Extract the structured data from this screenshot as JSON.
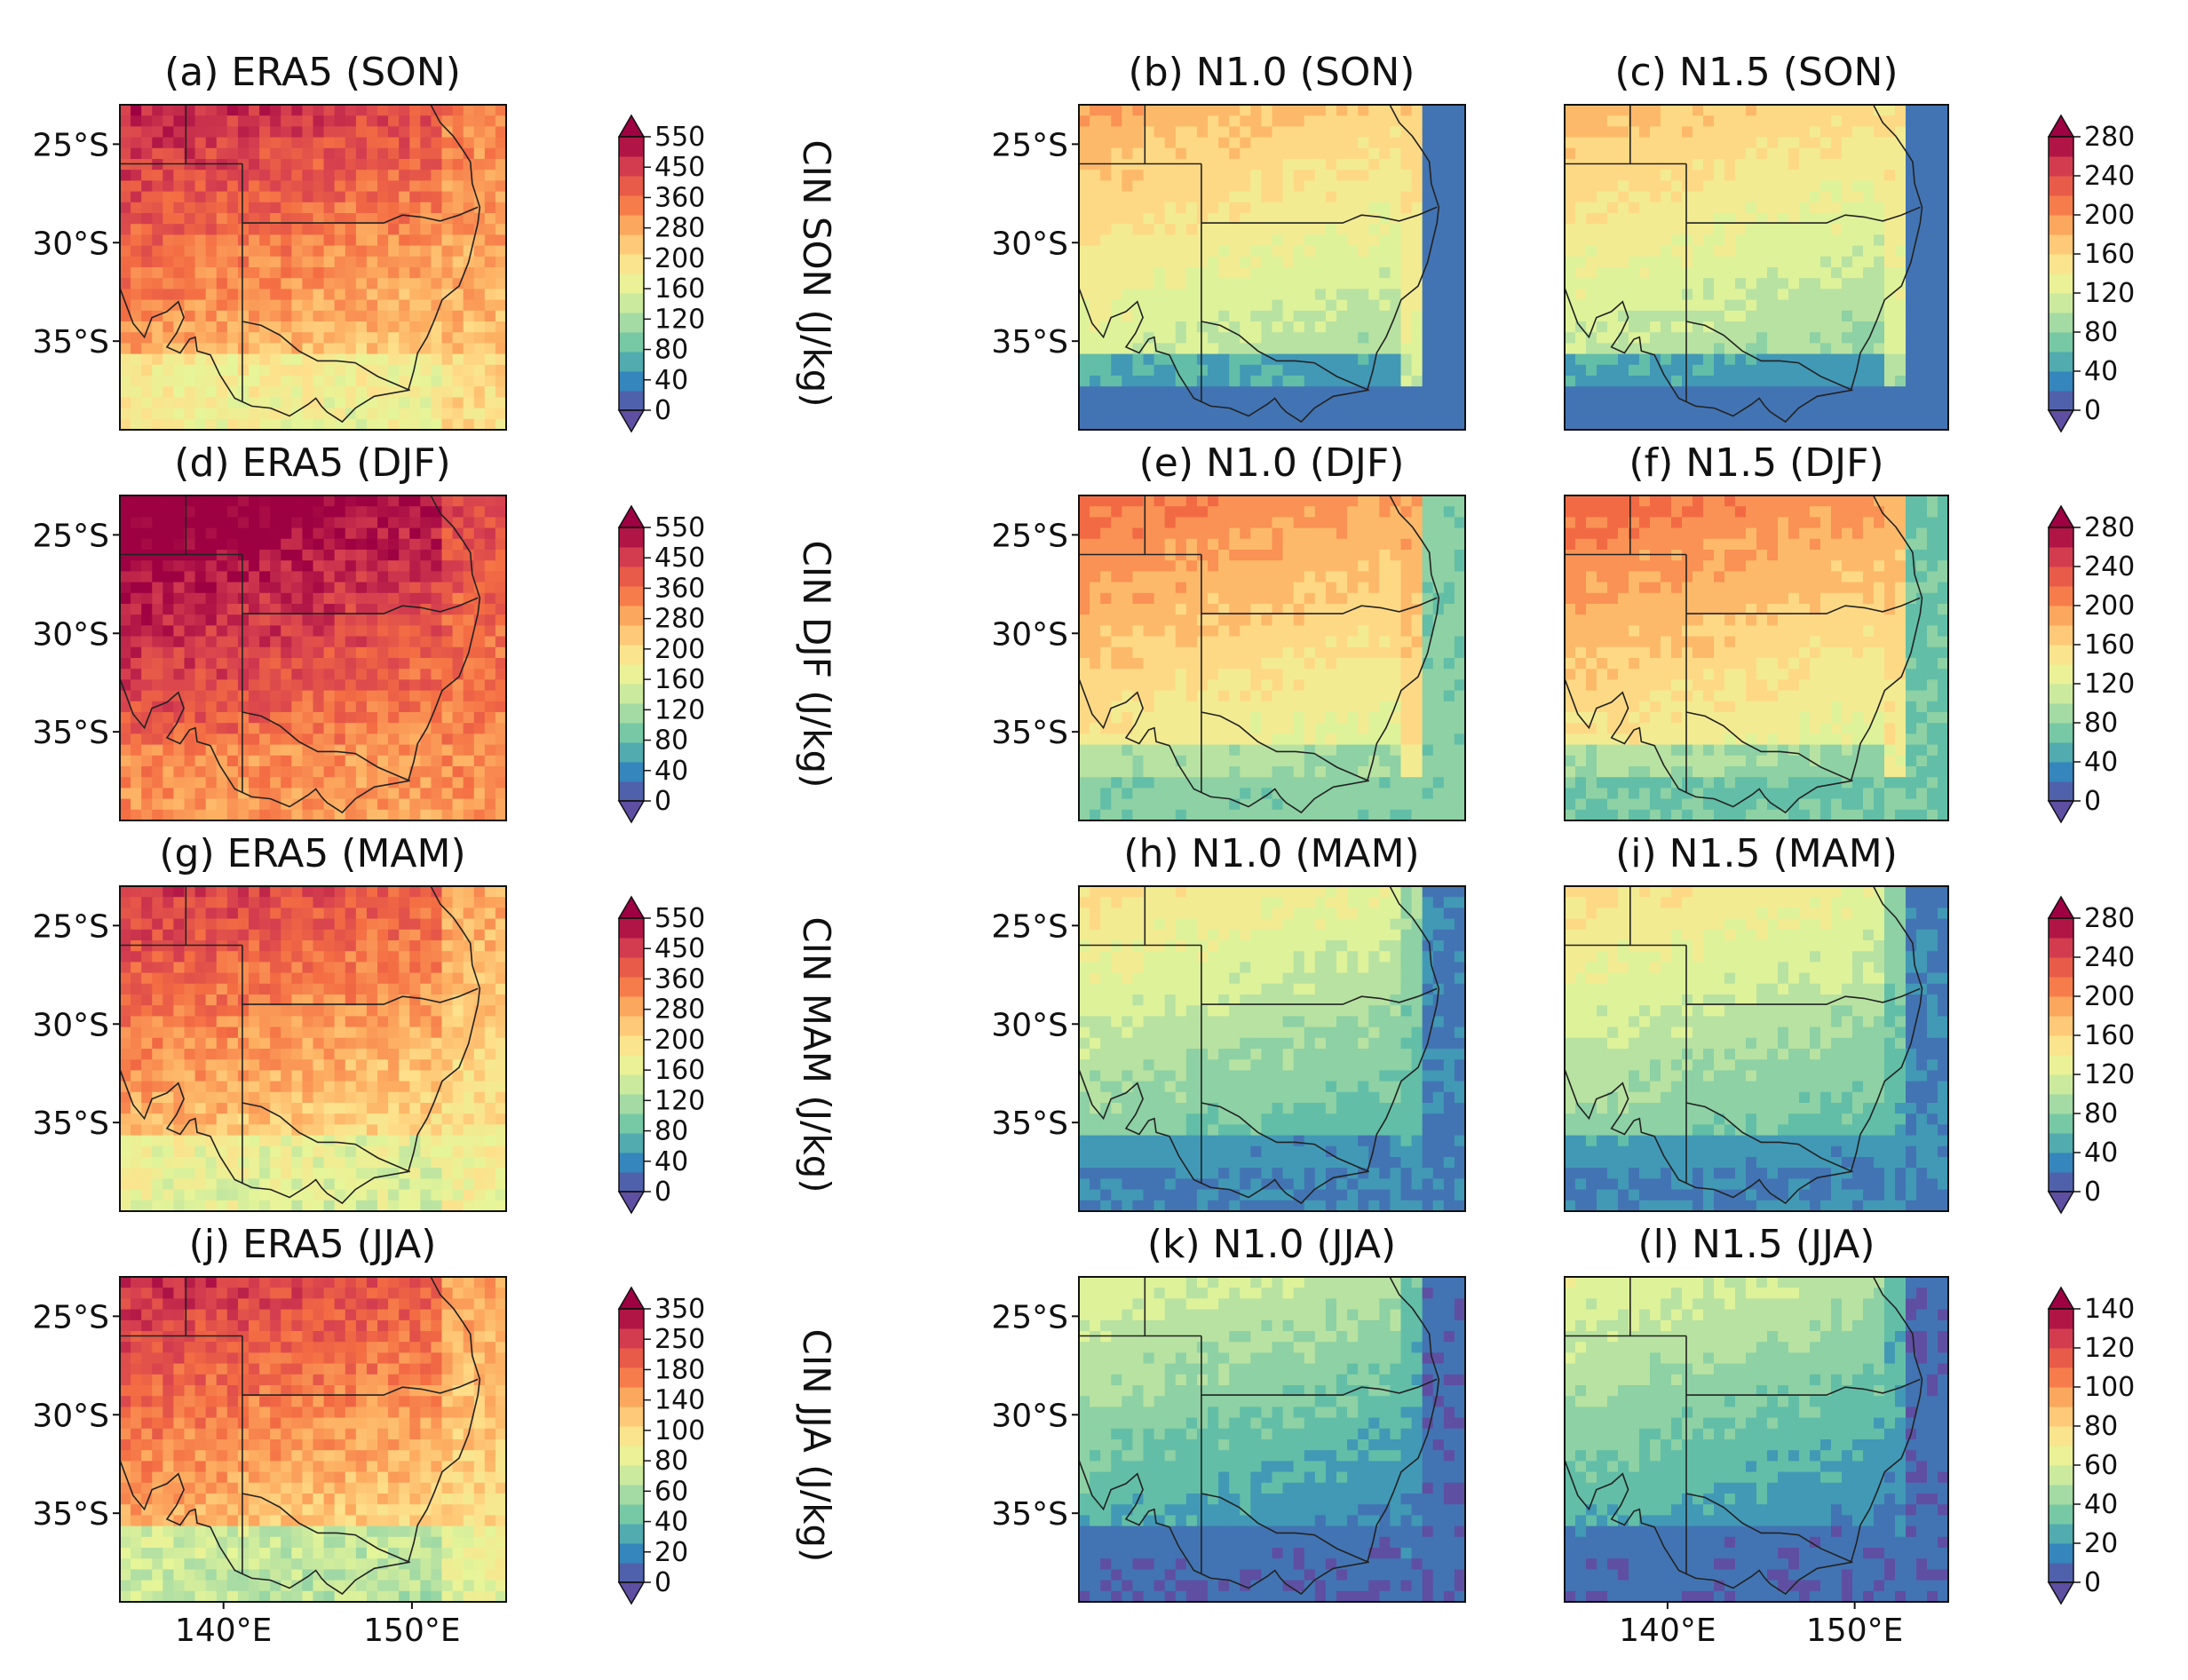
{
  "chart_data": {
    "type": "heatmap",
    "description_units": "J/kg",
    "rows": [
      {
        "season": "SON",
        "colorbars": [
          {
            "id": "era5",
            "label": "CIN SON (J/kg)",
            "ticks": [
              "0",
              "40",
              "80",
              "120",
              "160",
              "200",
              "280",
              "360",
              "450",
              "550"
            ]
          },
          {
            "id": "model",
            "label": "",
            "ticks": [
              "0",
              "40",
              "80",
              "120",
              "160",
              "200",
              "240",
              "280"
            ]
          }
        ],
        "panels": [
          {
            "id": "a",
            "title": "(a) ERA5 (SON)",
            "mean_level": 0.72,
            "south_level": 0.42,
            "coast_level": 0.66,
            "colorbar": "era5"
          },
          {
            "id": "b",
            "title": "(b) N1.0 (SON)",
            "mean_level": 0.45,
            "south_level": 0.05,
            "coast_level": 0.6,
            "colorbar": "model"
          },
          {
            "id": "c",
            "title": "(c) N1.5 (SON)",
            "mean_level": 0.42,
            "south_level": 0.05,
            "coast_level": 0.55,
            "colorbar": "model"
          }
        ]
      },
      {
        "season": "DJF",
        "colorbars": [
          {
            "id": "era5",
            "label": "CIN DJF (J/kg)",
            "ticks": [
              "0",
              "40",
              "80",
              "120",
              "160",
              "200",
              "280",
              "360",
              "450",
              "550"
            ]
          },
          {
            "id": "model",
            "label": "",
            "ticks": [
              "0",
              "40",
              "80",
              "120",
              "160",
              "200",
              "240",
              "280"
            ]
          }
        ],
        "panels": [
          {
            "id": "d",
            "title": "(d) ERA5 (DJF)",
            "mean_level": 0.85,
            "south_level": 0.7,
            "coast_level": 0.75,
            "colorbar": "era5"
          },
          {
            "id": "e",
            "title": "(e) N1.0 (DJF)",
            "mean_level": 0.55,
            "south_level": 0.25,
            "coast_level": 0.68,
            "colorbar": "model"
          },
          {
            "id": "f",
            "title": "(f) N1.5 (DJF)",
            "mean_level": 0.56,
            "south_level": 0.22,
            "coast_level": 0.62,
            "colorbar": "model"
          }
        ]
      },
      {
        "season": "MAM",
        "colorbars": [
          {
            "id": "era5",
            "label": "CIN MAM (J/kg)",
            "ticks": [
              "0",
              "40",
              "80",
              "120",
              "160",
              "200",
              "280",
              "360",
              "450",
              "550"
            ]
          },
          {
            "id": "model",
            "label": "",
            "ticks": [
              "0",
              "40",
              "80",
              "120",
              "160",
              "200",
              "240",
              "280"
            ]
          }
        ],
        "panels": [
          {
            "id": "g",
            "title": "(g) ERA5 (MAM)",
            "mean_level": 0.68,
            "south_level": 0.38,
            "coast_level": 0.55,
            "colorbar": "era5"
          },
          {
            "id": "h",
            "title": "(h) N1.0 (MAM)",
            "mean_level": 0.32,
            "south_level": 0.08,
            "coast_level": 0.2,
            "colorbar": "model"
          },
          {
            "id": "i",
            "title": "(i) N1.5 (MAM)",
            "mean_level": 0.33,
            "south_level": 0.08,
            "coast_level": 0.18,
            "colorbar": "model"
          }
        ]
      },
      {
        "season": "JJA",
        "colorbars": [
          {
            "id": "era5",
            "label": "CIN JJA (J/kg)",
            "ticks": [
              "0",
              "20",
              "40",
              "60",
              "80",
              "100",
              "140",
              "180",
              "250",
              "350"
            ]
          },
          {
            "id": "model",
            "label": "",
            "ticks": [
              "0",
              "20",
              "40",
              "60",
              "80",
              "100",
              "120",
              "140"
            ]
          }
        ],
        "panels": [
          {
            "id": "j",
            "title": "(j) ERA5 (JJA)",
            "mean_level": 0.7,
            "south_level": 0.25,
            "coast_level": 0.55,
            "colorbar": "era5"
          },
          {
            "id": "k",
            "title": "(k) N1.0 (JJA)",
            "mean_level": 0.22,
            "south_level": 0.03,
            "coast_level": 0.12,
            "colorbar": "model"
          },
          {
            "id": "l",
            "title": "(l) N1.5 (JJA)",
            "mean_level": 0.22,
            "south_level": 0.03,
            "coast_level": 0.12,
            "colorbar": "model"
          }
        ]
      }
    ],
    "y_axis": {
      "ticks": [
        "25°S",
        "30°S",
        "35°S"
      ],
      "lat_values": [
        -25,
        -30,
        -35
      ],
      "lat_range": [
        -39.5,
        -23
      ]
    },
    "x_axis": {
      "ticks": [
        "140°E",
        "150°E"
      ],
      "lon_values": [
        140,
        150
      ],
      "lon_range": [
        134.5,
        155
      ]
    },
    "colormap": "Spectral_r",
    "colormap_stops": [
      "#5e4fa2",
      "#3288bd",
      "#66c2a5",
      "#abdda4",
      "#e6f598",
      "#fee08b",
      "#fdae61",
      "#f46d43",
      "#d53e4f",
      "#9e0142"
    ]
  }
}
